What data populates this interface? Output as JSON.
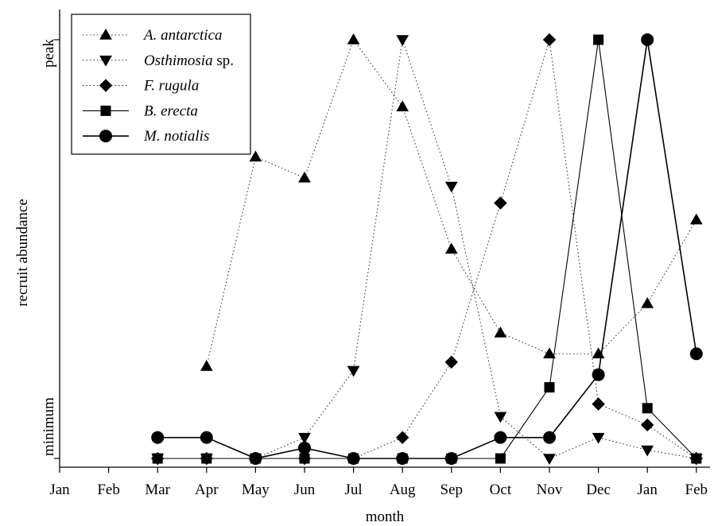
{
  "chart_data": {
    "type": "line",
    "xlabel": "month",
    "ylabel": "recruit abundance",
    "ytick_labels": {
      "low": "minimum",
      "high": "peak"
    },
    "categories": [
      "Jan",
      "Feb",
      "Mar",
      "Apr",
      "May",
      "Jun",
      "Jul",
      "Aug",
      "Sep",
      "Oct",
      "Nov",
      "Dec",
      "Jan",
      "Feb"
    ],
    "ylim": [
      0,
      1
    ],
    "grid": false,
    "legend_position": "top-left",
    "series": [
      {
        "name": "A. antarctica",
        "legend_parts": [
          "A. antarctica",
          ""
        ],
        "marker": "triangle-up",
        "line_style": "dotted",
        "values": [
          null,
          null,
          null,
          0.22,
          0.72,
          0.67,
          1.0,
          0.84,
          0.5,
          0.3,
          0.25,
          0.25,
          0.37,
          0.57
        ]
      },
      {
        "name": "Osthimosia sp.",
        "legend_parts": [
          "Osthimosia",
          " sp."
        ],
        "marker": "triangle-down",
        "line_style": "dotted",
        "values": [
          null,
          null,
          0.0,
          0.0,
          0.0,
          0.05,
          0.21,
          1.0,
          0.65,
          0.1,
          0.0,
          0.05,
          0.02,
          0.0
        ]
      },
      {
        "name": "F. rugula",
        "legend_parts": [
          "F. rugula",
          ""
        ],
        "marker": "diamond",
        "line_style": "dotted",
        "values": [
          null,
          null,
          0.0,
          0.0,
          0.0,
          0.0,
          0.0,
          0.05,
          0.23,
          0.61,
          1.0,
          0.13,
          0.08,
          0.0
        ]
      },
      {
        "name": "B. erecta",
        "legend_parts": [
          "B. erecta",
          ""
        ],
        "marker": "square",
        "line_style": "solid",
        "values": [
          null,
          null,
          0.0,
          0.0,
          0.0,
          0.0,
          0.0,
          0.0,
          0.0,
          0.0,
          0.17,
          1.0,
          0.12,
          0.0
        ]
      },
      {
        "name": "M. notialis",
        "legend_parts": [
          "M. notialis",
          ""
        ],
        "marker": "circle",
        "line_style": "solid",
        "values": [
          null,
          null,
          0.05,
          0.05,
          0.0,
          0.025,
          0.0,
          0.0,
          0.0,
          0.05,
          0.05,
          0.2,
          1.0,
          0.25
        ]
      }
    ]
  }
}
